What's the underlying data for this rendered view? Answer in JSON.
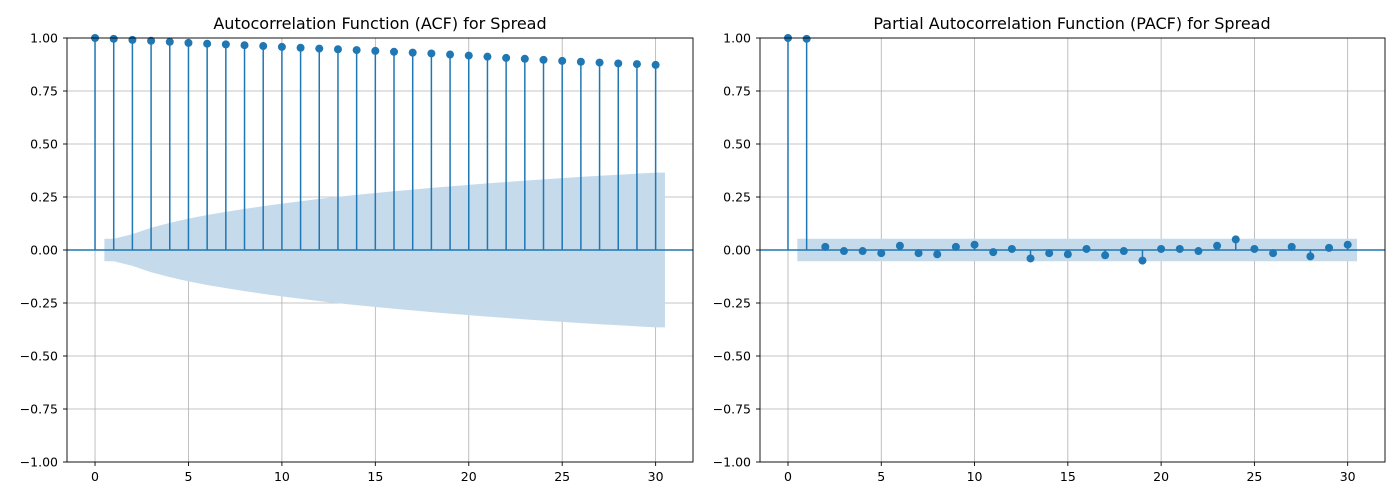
{
  "colors": {
    "series": "#1f77b4",
    "confidence_band": "#c5dbec",
    "grid": "#b0b0b0"
  },
  "chart_data": [
    {
      "type": "stem",
      "title": "Autocorrelation Function (ACF) for Spread",
      "xlabel": "",
      "ylabel": "",
      "xlim": [
        -1.5,
        32
      ],
      "ylim": [
        -1.0,
        1.0
      ],
      "xticks": [
        0,
        5,
        10,
        15,
        20,
        25,
        30
      ],
      "xtick_labels": [
        "0",
        "5",
        "10",
        "15",
        "20",
        "25",
        "30"
      ],
      "yticks": [
        -1.0,
        -0.75,
        -0.5,
        -0.25,
        0.0,
        0.25,
        0.5,
        0.75,
        1.0
      ],
      "ytick_labels": [
        "−1.00",
        "−0.75",
        "−0.50",
        "−0.25",
        "0.00",
        "0.25",
        "0.50",
        "0.75",
        "1.00"
      ],
      "grid": true,
      "lags": [
        0,
        1,
        2,
        3,
        4,
        5,
        6,
        7,
        8,
        9,
        10,
        11,
        12,
        13,
        14,
        15,
        16,
        17,
        18,
        19,
        20,
        21,
        22,
        23,
        24,
        25,
        26,
        27,
        28,
        29,
        30
      ],
      "values": [
        1.0,
        0.996,
        0.991,
        0.987,
        0.982,
        0.977,
        0.973,
        0.97,
        0.966,
        0.962,
        0.958,
        0.954,
        0.95,
        0.947,
        0.943,
        0.939,
        0.935,
        0.931,
        0.927,
        0.922,
        0.917,
        0.912,
        0.906,
        0.902,
        0.897,
        0.892,
        0.888,
        0.884,
        0.88,
        0.877,
        0.873
      ],
      "confidence_band": {
        "lags": [
          0.5,
          1,
          2,
          3,
          4,
          5,
          6,
          7,
          8,
          9,
          10,
          11,
          12,
          13,
          14,
          15,
          16,
          17,
          18,
          19,
          20,
          21,
          22,
          23,
          24,
          25,
          26,
          27,
          28,
          29,
          30,
          30.5
        ],
        "upper": [
          0.053,
          0.053,
          0.075,
          0.105,
          0.128,
          0.148,
          0.165,
          0.18,
          0.194,
          0.207,
          0.219,
          0.23,
          0.241,
          0.251,
          0.26,
          0.269,
          0.277,
          0.285,
          0.293,
          0.3,
          0.307,
          0.314,
          0.321,
          0.327,
          0.333,
          0.339,
          0.345,
          0.35,
          0.355,
          0.36,
          0.365,
          0.365
        ]
      }
    },
    {
      "type": "stem",
      "title": "Partial Autocorrelation Function (PACF) for Spread",
      "xlabel": "",
      "ylabel": "",
      "xlim": [
        -1.5,
        32
      ],
      "ylim": [
        -1.0,
        1.0
      ],
      "xticks": [
        0,
        5,
        10,
        15,
        20,
        25,
        30
      ],
      "xtick_labels": [
        "0",
        "5",
        "10",
        "15",
        "20",
        "25",
        "30"
      ],
      "yticks": [
        -1.0,
        -0.75,
        -0.5,
        -0.25,
        0.0,
        0.25,
        0.5,
        0.75,
        1.0
      ],
      "ytick_labels": [
        "−1.00",
        "−0.75",
        "−0.50",
        "−0.25",
        "0.00",
        "0.25",
        "0.50",
        "0.75",
        "1.00"
      ],
      "grid": true,
      "lags": [
        0,
        1,
        2,
        3,
        4,
        5,
        6,
        7,
        8,
        9,
        10,
        11,
        12,
        13,
        14,
        15,
        16,
        17,
        18,
        19,
        20,
        21,
        22,
        23,
        24,
        25,
        26,
        27,
        28,
        29,
        30
      ],
      "values": [
        1.0,
        0.996,
        0.015,
        -0.005,
        -0.005,
        -0.015,
        0.02,
        -0.015,
        -0.02,
        0.015,
        0.025,
        -0.01,
        0.005,
        -0.04,
        -0.015,
        -0.02,
        0.005,
        -0.025,
        -0.005,
        -0.05,
        0.005,
        0.005,
        -0.005,
        0.02,
        0.05,
        0.005,
        -0.015,
        0.015,
        -0.03,
        0.01,
        0.025
      ],
      "confidence_band": {
        "lags": [
          0.5,
          30.5
        ],
        "upper": [
          0.053,
          0.053
        ]
      }
    }
  ]
}
